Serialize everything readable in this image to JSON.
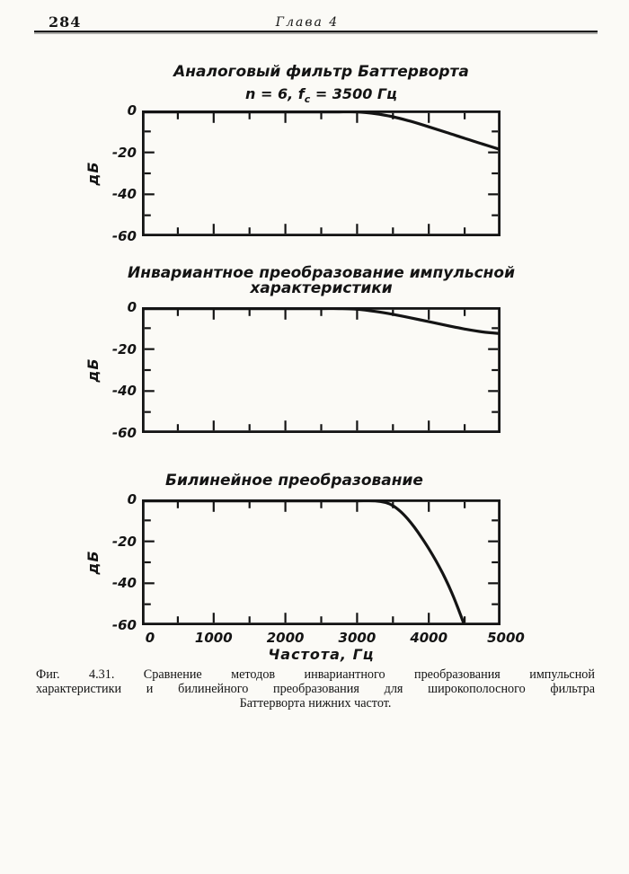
{
  "header": {
    "page_number": "284",
    "chapter": "Глава 4"
  },
  "figure": {
    "caption_line1": "Фиг. 4.31. Сравнение методов инвариантного преобразования импульсной",
    "caption_line2": "характеристики и билинейного преобразования для широкополосного фильтра",
    "caption_line3": "Баттерворта нижних частот."
  },
  "chart_data": [
    {
      "type": "line",
      "title": "Аналоговый фильтр Баттерворта",
      "subtitle": {
        "pre": "n = 6,  f",
        "sub": "c",
        "post": " = 3500 Гц"
      },
      "ylabel": "дБ",
      "ylim": [
        -60,
        0
      ],
      "xlim": [
        0,
        5000
      ],
      "y_ticks": [
        "0",
        "-20",
        "-40",
        "-60"
      ],
      "curve_points_hz_db": [
        [
          0,
          0
        ],
        [
          500,
          0
        ],
        [
          1000,
          0
        ],
        [
          1500,
          0
        ],
        [
          2000,
          -0.05
        ],
        [
          2500,
          -0.1
        ],
        [
          2750,
          -0.25
        ],
        [
          3000,
          -0.65
        ],
        [
          3250,
          -1.5
        ],
        [
          3500,
          -3
        ],
        [
          3750,
          -5.2
        ],
        [
          4000,
          -7.8
        ],
        [
          4250,
          -10.5
        ],
        [
          4500,
          -13.3
        ],
        [
          4750,
          -16
        ],
        [
          5000,
          -18.7
        ]
      ]
    },
    {
      "type": "line",
      "title": "Инвариантное преобразование импульсной",
      "title_line2": "характеристики",
      "ylabel": "дБ",
      "ylim": [
        -60,
        0
      ],
      "xlim": [
        0,
        5000
      ],
      "y_ticks": [
        "0",
        "-20",
        "-40",
        "-60"
      ],
      "curve_points_hz_db": [
        [
          0,
          0
        ],
        [
          500,
          0
        ],
        [
          1000,
          0
        ],
        [
          1500,
          0
        ],
        [
          2000,
          -0.05
        ],
        [
          2500,
          -0.25
        ],
        [
          2750,
          -0.5
        ],
        [
          3000,
          -1
        ],
        [
          3250,
          -2
        ],
        [
          3500,
          -3.4
        ],
        [
          3750,
          -5.1
        ],
        [
          4000,
          -6.9
        ],
        [
          4250,
          -8.7
        ],
        [
          4500,
          -10.4
        ],
        [
          4750,
          -11.8
        ],
        [
          5000,
          -12.6
        ]
      ]
    },
    {
      "type": "line",
      "title": "Билинейное преобразование",
      "ylabel": "дБ",
      "xlabel": "Частота, Гц",
      "ylim": [
        -60,
        0
      ],
      "xlim": [
        0,
        5000
      ],
      "y_ticks": [
        "0",
        "-20",
        "-40",
        "-60"
      ],
      "x_ticks": [
        "0",
        "1000",
        "2000",
        "3000",
        "4000",
        "5000"
      ],
      "curve_points_hz_db": [
        [
          0,
          0
        ],
        [
          1000,
          0
        ],
        [
          2000,
          0
        ],
        [
          2500,
          -0.05
        ],
        [
          2750,
          -0.1
        ],
        [
          3000,
          -0.2
        ],
        [
          3250,
          -0.6
        ],
        [
          3400,
          -1.5
        ],
        [
          3500,
          -3
        ],
        [
          3600,
          -5.6
        ],
        [
          3700,
          -9.1
        ],
        [
          3800,
          -13.3
        ],
        [
          3900,
          -18.2
        ],
        [
          4000,
          -23.5
        ],
        [
          4100,
          -29.3
        ],
        [
          4200,
          -35.7
        ],
        [
          4300,
          -42.9
        ],
        [
          4400,
          -51.2
        ],
        [
          4490,
          -60
        ]
      ]
    }
  ]
}
